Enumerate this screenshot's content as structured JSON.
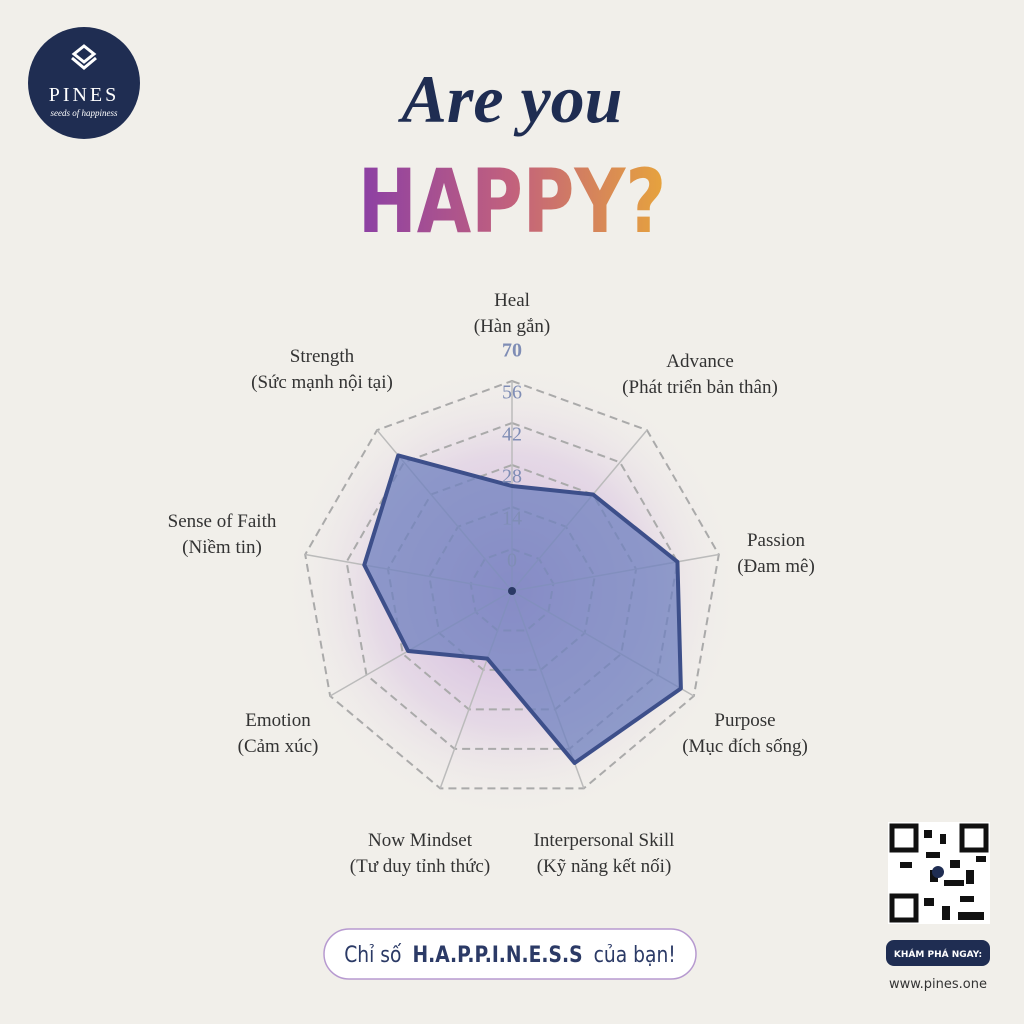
{
  "logo": {
    "name": "PINES",
    "tagline": "seeds of happiness"
  },
  "headline": {
    "line1": "Are you",
    "line2": "HAPPY?"
  },
  "chart_data": {
    "type": "radar",
    "categories": [
      "Heal",
      "Advance",
      "Passion",
      "Purpose",
      "Interpersonal Skill",
      "Now Mindset",
      "Emotion",
      "Sense of Faith",
      "Strength"
    ],
    "category_translations": [
      "(Hàn gắn)",
      "(Phát triển bản thân)",
      "(Đam mê)",
      "(Mục đích sống)",
      "(Kỹ năng kết nối)",
      "(Tư duy tỉnh thức)",
      "(Cảm xúc)",
      "(Niềm tin)",
      "(Sức mạnh nội tại)"
    ],
    "values": [
      35,
      42,
      56,
      65,
      61,
      24,
      40,
      50,
      59
    ],
    "color": "#6f80bf",
    "rlim": [
      0,
      70
    ],
    "rticks": [
      0,
      14,
      28,
      42,
      56,
      70
    ],
    "grid": true
  },
  "cta": {
    "before": "Chỉ số",
    "highlight": "H.A.P.P.I.N.E.S.S",
    "after": "của bạn!"
  },
  "qr": {
    "button": "KHÁM PHÁ NGAY:",
    "url": "www.pines.one"
  }
}
